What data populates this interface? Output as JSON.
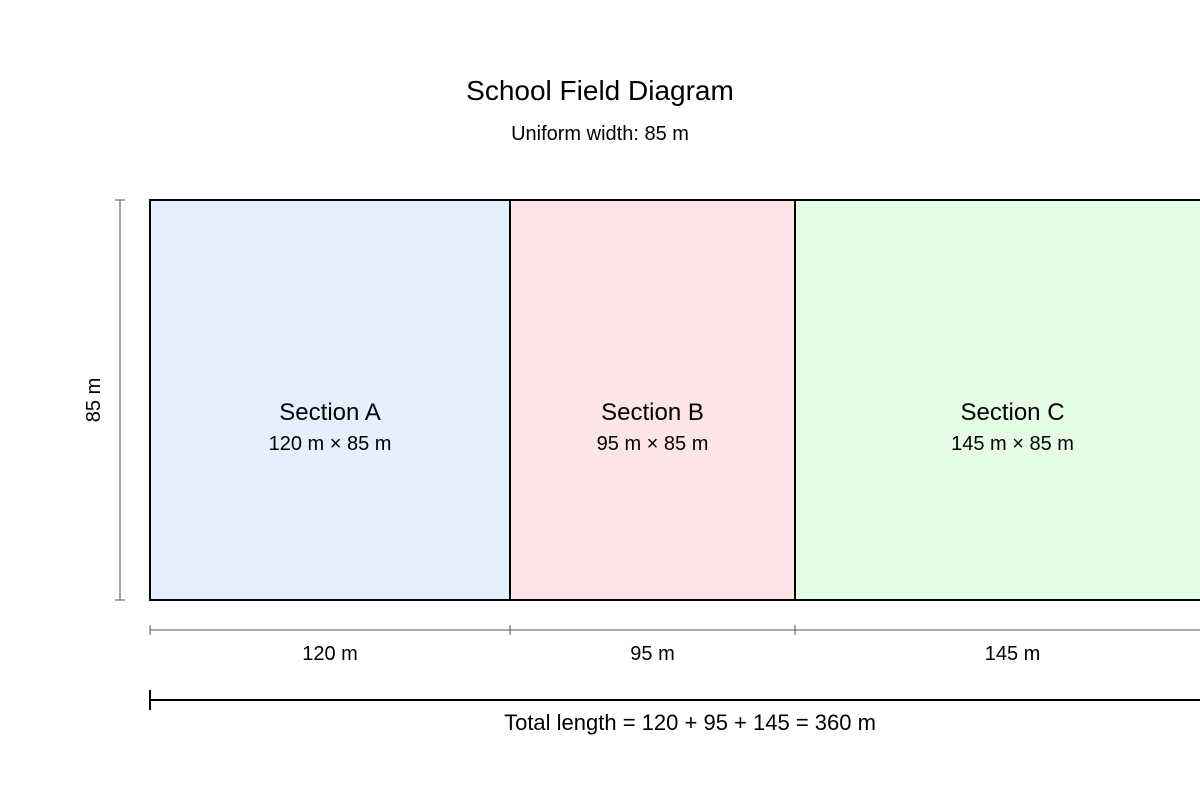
{
  "title": "School Field Diagram",
  "subtitle": "Uniform width: 85 m",
  "width_label": "85 m",
  "width_value": 85,
  "sections": [
    {
      "name": "Section A",
      "dims": "120 m × 85 m",
      "length": 120,
      "length_label": "120 m",
      "color": "#e4f0fd"
    },
    {
      "name": "Section B",
      "dims": "95 m × 85 m",
      "length": 95,
      "length_label": "95 m",
      "color": "#fde4e6"
    },
    {
      "name": "Section C",
      "dims": "145 m × 85 m",
      "length": 145,
      "length_label": "145 m",
      "color": "#e4fde4"
    }
  ],
  "total_label": "Total length = 120 + 95 + 145 = 360 m",
  "colors": {
    "outline": "#000000",
    "dimension_line": "#555555"
  }
}
